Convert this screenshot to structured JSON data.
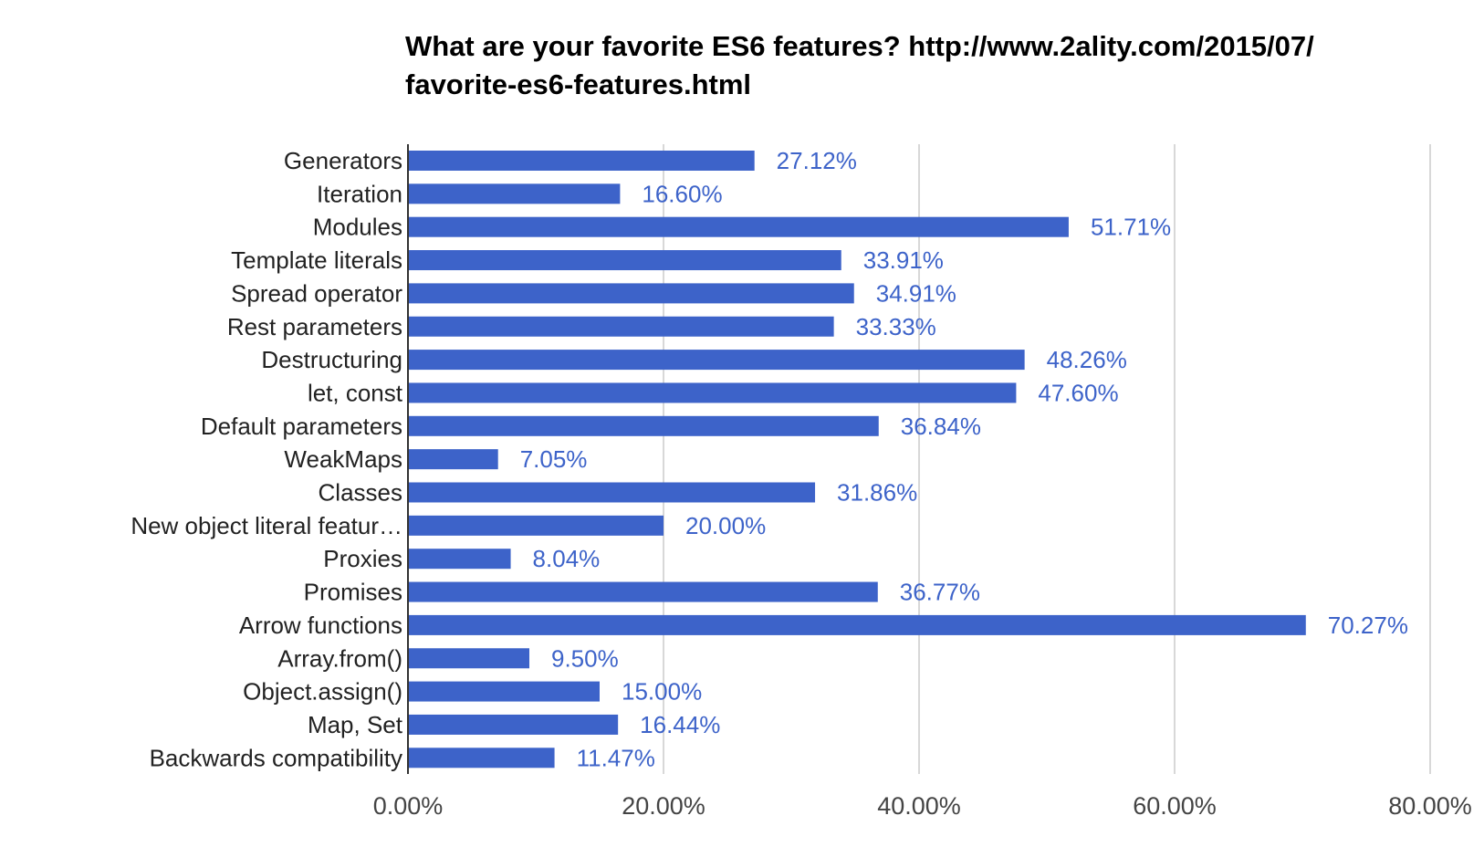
{
  "chart_data": {
    "type": "bar",
    "orientation": "horizontal",
    "title_line1": "What are your favorite ES6 features? http://www.2ality.com/2015/07/",
    "title_line2": "favorite-es6-features.html",
    "xlabel": "",
    "ylabel": "",
    "categories": [
      "Generators",
      "Iteration",
      "Modules",
      "Template literals",
      "Spread operator",
      "Rest parameters",
      "Destructuring",
      "let, const",
      "Default parameters",
      "WeakMaps",
      "Classes",
      "New object literal featur…",
      "Proxies",
      "Promises",
      "Arrow functions",
      "Array.from()",
      "Object.assign()",
      "Map, Set",
      "Backwards compatibility"
    ],
    "values": [
      27.12,
      16.6,
      51.71,
      33.91,
      34.91,
      33.33,
      48.26,
      47.6,
      36.84,
      7.05,
      31.86,
      20.0,
      8.04,
      36.77,
      70.27,
      9.5,
      15.0,
      16.44,
      11.47
    ],
    "data_labels": [
      "27.12%",
      "16.60%",
      "51.71%",
      "33.91%",
      "34.91%",
      "33.33%",
      "48.26%",
      "47.60%",
      "36.84%",
      "7.05%",
      "31.86%",
      "20.00%",
      "8.04%",
      "36.77%",
      "70.27%",
      "9.50%",
      "15.00%",
      "16.44%",
      "11.47%"
    ],
    "xlim": [
      0,
      80
    ],
    "x_ticks": [
      0,
      20,
      40,
      60,
      80
    ],
    "x_tick_labels": [
      "0.00%",
      "20.00%",
      "40.00%",
      "60.00%",
      "80.00%"
    ],
    "grid": true,
    "legend": "none",
    "bar_color": "#3d63c9",
    "label_color": "#3d63c9",
    "gridline_color": "#cccccc",
    "axis_color": "#333333"
  }
}
